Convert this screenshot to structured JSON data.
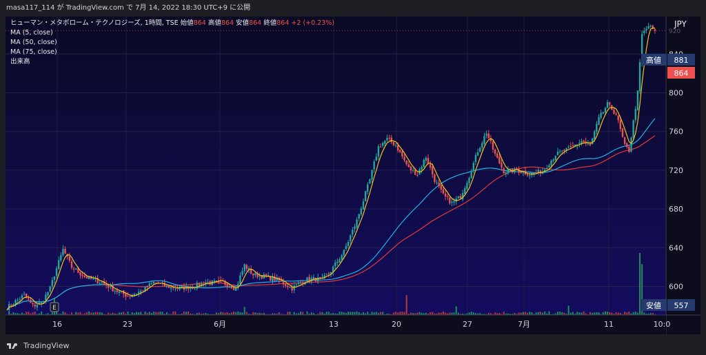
{
  "publish_info": "masa117_114 が TradingView.com で 7月 14, 2022 18:30 UTC+9 に公開",
  "legend": {
    "title": "ヒューマン・メタボローム・テクノロジーズ, 1時間, TSE",
    "open_label": "始値",
    "open": "864",
    "high_label": "高値",
    "high": "864",
    "low_label": "安値",
    "low": "864",
    "close_label": "終値",
    "close": "864",
    "change": "+2 (+0.23%)",
    "indicators": [
      "MA (5, close)",
      "MA (50, close)",
      "MA (75, close)",
      "出来高"
    ]
  },
  "price_axis": {
    "currency": "JPY",
    "labels": [
      "920",
      "840",
      "800",
      "760",
      "720",
      "680",
      "640",
      "600"
    ],
    "last_price": "864",
    "high_tag": {
      "label": "高値",
      "value": "881"
    },
    "low_tag": {
      "label": "安値",
      "value": "557"
    }
  },
  "time_axis": {
    "labels": [
      "16",
      "23",
      "6月",
      "13",
      "20",
      "27",
      "7月",
      "11",
      "10:0"
    ]
  },
  "earnings_marker": "E",
  "footer": {
    "brand": "TradingView"
  },
  "colors": {
    "background": "#0d0b36",
    "up": "#26a69a",
    "down": "#ef5350",
    "ma5": "#f5c518",
    "ma50": "#1eb4e6",
    "ma75": "#e53935",
    "price_tag": "#ef4f4f",
    "tag": "#253a6d"
  },
  "chart_data": {
    "type": "candlestick",
    "y_range": [
      557,
      900
    ],
    "x_labels": [
      "16",
      "23",
      "6月",
      "13",
      "20",
      "27",
      "7月",
      "11",
      "10:0"
    ],
    "price_anchors": [
      [
        0,
        578
      ],
      [
        3,
        583
      ],
      [
        8,
        591
      ],
      [
        12,
        580
      ],
      [
        16,
        583
      ],
      [
        20,
        598
      ],
      [
        22,
        612
      ],
      [
        26,
        638
      ],
      [
        30,
        620
      ],
      [
        36,
        610
      ],
      [
        44,
        604
      ],
      [
        50,
        596
      ],
      [
        56,
        590
      ],
      [
        62,
        595
      ],
      [
        68,
        604
      ],
      [
        74,
        600
      ],
      [
        80,
        598
      ],
      [
        86,
        600
      ],
      [
        92,
        604
      ],
      [
        100,
        604
      ],
      [
        106,
        598
      ],
      [
        110,
        622
      ],
      [
        114,
        612
      ],
      [
        120,
        610
      ],
      [
        126,
        606
      ],
      [
        132,
        598
      ],
      [
        136,
        604
      ],
      [
        140,
        608
      ],
      [
        146,
        607
      ],
      [
        150,
        616
      ],
      [
        156,
        636
      ],
      [
        162,
        668
      ],
      [
        168,
        710
      ],
      [
        172,
        744
      ],
      [
        176,
        752
      ],
      [
        180,
        746
      ],
      [
        186,
        722
      ],
      [
        190,
        716
      ],
      [
        194,
        734
      ],
      [
        198,
        710
      ],
      [
        202,
        694
      ],
      [
        206,
        686
      ],
      [
        210,
        693
      ],
      [
        214,
        714
      ],
      [
        218,
        740
      ],
      [
        222,
        759
      ],
      [
        226,
        736
      ],
      [
        230,
        719
      ],
      [
        236,
        720
      ],
      [
        242,
        716
      ],
      [
        248,
        719
      ],
      [
        254,
        736
      ],
      [
        260,
        742
      ],
      [
        266,
        750
      ],
      [
        270,
        745
      ],
      [
        274,
        773
      ],
      [
        278,
        788
      ],
      [
        282,
        778
      ],
      [
        286,
        745
      ],
      [
        288,
        740
      ],
      [
        292,
        800
      ],
      [
        294,
        860
      ],
      [
        297,
        869
      ],
      [
        300,
        864
      ]
    ],
    "ma5": "5-period moving average of close",
    "ma50": "50-period moving average of close",
    "ma75": "75-period moving average of close",
    "volume_spikes": [
      {
        "bar": 293,
        "volume": 1.0
      },
      {
        "bar": 294,
        "volume": 0.82
      },
      {
        "bar": 22,
        "volume": 0.28
      },
      {
        "bar": 185,
        "volume": 0.32
      },
      {
        "bar": 208,
        "volume": 0.14
      },
      {
        "bar": 260,
        "volume": 0.15
      },
      {
        "bar": 110,
        "volume": 0.13
      }
    ]
  }
}
